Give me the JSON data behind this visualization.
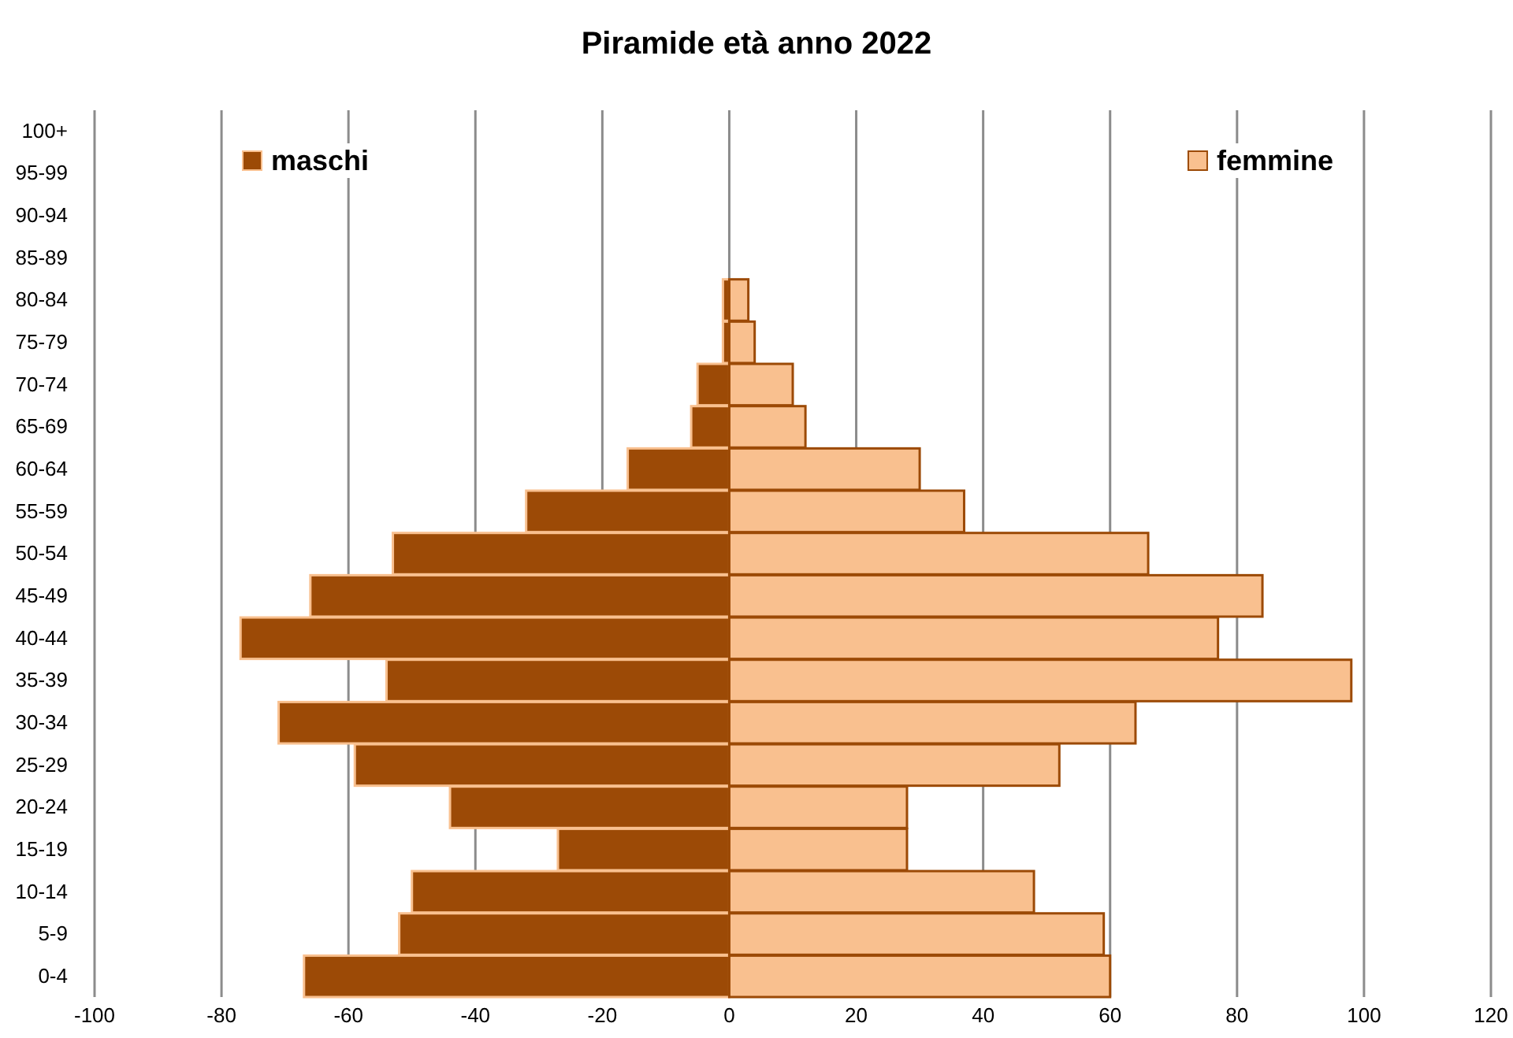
{
  "chart_data": {
    "type": "bar",
    "orientation": "horizontal",
    "stacked": true,
    "title": "Piramide età anno 2022",
    "categories": [
      "100+",
      "95-99",
      "90-94",
      "85-89",
      "80-84",
      "75-79",
      "70-74",
      "65-69",
      "60-64",
      "55-59",
      "50-54",
      "45-49",
      "40-44",
      "35-39",
      "30-34",
      "25-29",
      "20-24",
      "15-19",
      "10-14",
      "5-9",
      "0-4"
    ],
    "series": [
      {
        "name": "maschi",
        "color": "#9c4a06",
        "values": [
          null,
          null,
          null,
          null,
          -1,
          -1,
          -5,
          -6,
          -16,
          -32,
          -53,
          -66,
          -77,
          -54,
          -71,
          -59,
          -44,
          -27,
          -50,
          -52,
          -67
        ]
      },
      {
        "name": "femmine",
        "color": "#f9c08f",
        "values": [
          null,
          null,
          null,
          null,
          3,
          4,
          10,
          12,
          30,
          37,
          66,
          84,
          77,
          98,
          64,
          52,
          28,
          28,
          48,
          59,
          60
        ]
      }
    ],
    "xlim": [
      -100,
      120
    ],
    "xticks": [
      -100,
      -80,
      -60,
      -40,
      -20,
      0,
      20,
      40,
      60,
      80,
      100,
      120
    ],
    "grid": "x",
    "legend": "top"
  }
}
